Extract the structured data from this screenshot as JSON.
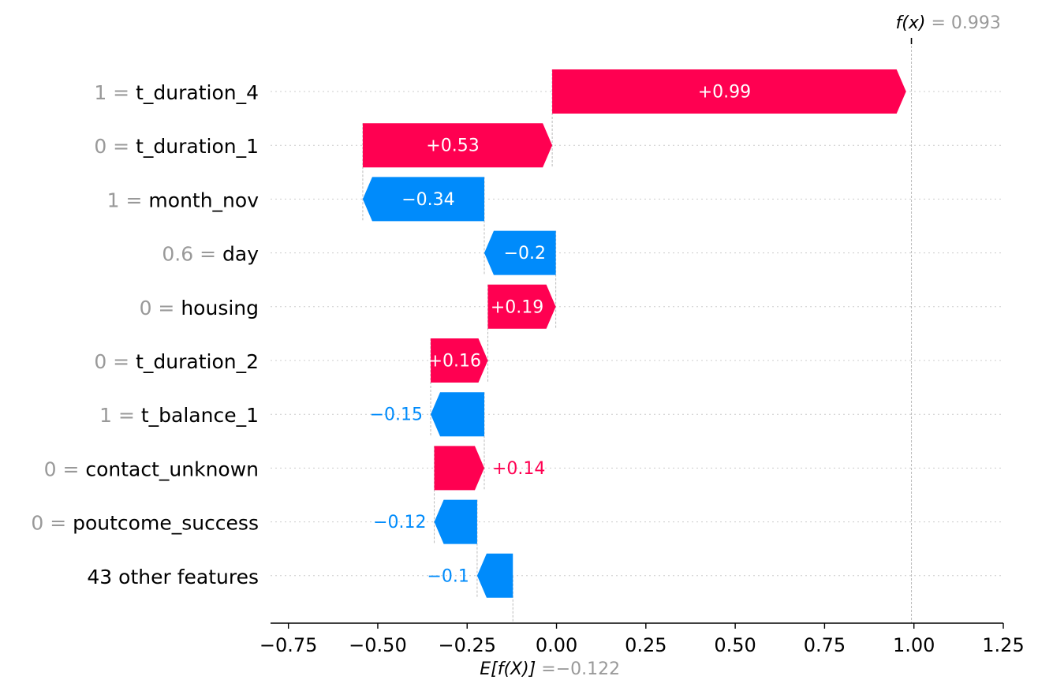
{
  "chart_data": {
    "type": "waterfall",
    "base_value": {
      "label_fn": "E[f(X)]",
      "equals": "=",
      "value_text": "−0.122",
      "value": -0.122
    },
    "output_value": {
      "label_fn": "f(x)",
      "equals": "=",
      "value_text": "0.993",
      "value": 0.993
    },
    "features": [
      {
        "value": "1",
        "name": "t_duration_4",
        "shap": 0.99,
        "label": "+0.99"
      },
      {
        "value": "0",
        "name": "t_duration_1",
        "shap": 0.53,
        "label": "+0.53"
      },
      {
        "value": "1",
        "name": "month_nov",
        "shap": -0.34,
        "label": "−0.34"
      },
      {
        "value": "0.6",
        "name": "day",
        "shap": -0.2,
        "label": "−0.2"
      },
      {
        "value": "0",
        "name": "housing",
        "shap": 0.19,
        "label": "+0.19"
      },
      {
        "value": "0",
        "name": "t_duration_2",
        "shap": 0.16,
        "label": "+0.16"
      },
      {
        "value": "1",
        "name": "t_balance_1",
        "shap": -0.15,
        "label": "−0.15"
      },
      {
        "value": "0",
        "name": "contact_unknown",
        "shap": 0.14,
        "label": "+0.14"
      },
      {
        "value": "0",
        "name": "poutcome_success",
        "shap": -0.12,
        "label": "−0.12"
      },
      {
        "value": "",
        "name": "43 other features",
        "shap": -0.1,
        "label": "−0.1"
      }
    ],
    "xlim": [
      -0.8,
      1.25
    ],
    "xticks": [
      -0.75,
      -0.5,
      -0.25,
      0.0,
      0.25,
      0.5,
      0.75,
      1.0,
      1.25
    ],
    "xtick_labels": [
      "−0.75",
      "−0.50",
      "−0.25",
      "0.00",
      "0.25",
      "0.50",
      "0.75",
      "1.00",
      "1.25"
    ],
    "grid": "horizontal dotted",
    "colors": {
      "positive": "#ff0051",
      "negative": "#008bfb",
      "muted": "#999999",
      "axis": "#000000"
    }
  }
}
